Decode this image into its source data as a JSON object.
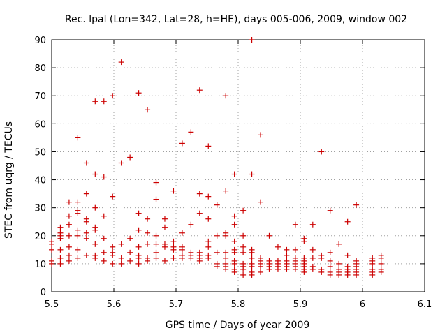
{
  "chart_data": {
    "type": "scatter",
    "title": "Rec. lpal (Lon=342, Lat=28, h=HE), days 005-006, 2009, window 002",
    "xlabel": "GPS time / Days of year 2009",
    "ylabel": "STEC from uqrg / TECUs",
    "xlim": [
      5.5,
      6.1
    ],
    "ylim": [
      0,
      90
    ],
    "xticks": [
      5.5,
      5.6,
      5.7,
      5.8,
      5.9,
      6.0,
      6.1
    ],
    "xtick_labels": [
      "5.5",
      "5.6",
      "5.7",
      "5.8",
      "5.9",
      "6",
      "6.1"
    ],
    "yticks": [
      0,
      10,
      20,
      30,
      40,
      50,
      60,
      70,
      80,
      90
    ],
    "ytick_labels": [
      "0",
      "10",
      "20",
      "30",
      "40",
      "50",
      "60",
      "70",
      "80",
      "90"
    ],
    "grid": true,
    "marker": "+",
    "color": "#cc0000",
    "series": [
      {
        "name": "STEC",
        "points": [
          [
            5.5,
            18
          ],
          [
            5.5,
            17
          ],
          [
            5.5,
            15
          ],
          [
            5.5,
            11
          ],
          [
            5.5,
            10
          ],
          [
            5.514,
            23
          ],
          [
            5.514,
            21
          ],
          [
            5.514,
            20
          ],
          [
            5.514,
            19
          ],
          [
            5.514,
            15
          ],
          [
            5.514,
            12
          ],
          [
            5.514,
            10
          ],
          [
            5.528,
            32
          ],
          [
            5.528,
            27
          ],
          [
            5.528,
            24
          ],
          [
            5.528,
            20
          ],
          [
            5.528,
            16
          ],
          [
            5.528,
            13
          ],
          [
            5.528,
            11
          ],
          [
            5.542,
            55
          ],
          [
            5.542,
            32
          ],
          [
            5.542,
            29
          ],
          [
            5.542,
            28
          ],
          [
            5.542,
            22
          ],
          [
            5.542,
            20
          ],
          [
            5.542,
            15
          ],
          [
            5.542,
            12
          ],
          [
            5.556,
            46
          ],
          [
            5.556,
            35
          ],
          [
            5.556,
            26
          ],
          [
            5.556,
            25
          ],
          [
            5.556,
            21
          ],
          [
            5.556,
            19
          ],
          [
            5.556,
            13
          ],
          [
            5.57,
            68
          ],
          [
            5.57,
            42
          ],
          [
            5.57,
            30
          ],
          [
            5.57,
            23
          ],
          [
            5.57,
            22
          ],
          [
            5.57,
            17
          ],
          [
            5.57,
            13
          ],
          [
            5.57,
            12
          ],
          [
            5.584,
            68
          ],
          [
            5.584,
            41
          ],
          [
            5.584,
            27
          ],
          [
            5.584,
            19
          ],
          [
            5.584,
            14
          ],
          [
            5.584,
            11
          ],
          [
            5.598,
            70
          ],
          [
            5.598,
            34
          ],
          [
            5.598,
            16
          ],
          [
            5.598,
            14
          ],
          [
            5.598,
            13
          ],
          [
            5.598,
            10
          ],
          [
            5.612,
            82
          ],
          [
            5.612,
            46
          ],
          [
            5.612,
            17
          ],
          [
            5.612,
            12
          ],
          [
            5.612,
            10
          ],
          [
            5.626,
            48
          ],
          [
            5.626,
            19
          ],
          [
            5.626,
            14
          ],
          [
            5.626,
            11
          ],
          [
            5.64,
            71
          ],
          [
            5.64,
            28
          ],
          [
            5.64,
            22
          ],
          [
            5.64,
            16
          ],
          [
            5.64,
            13
          ],
          [
            5.64,
            12
          ],
          [
            5.64,
            10
          ],
          [
            5.654,
            65
          ],
          [
            5.654,
            26
          ],
          [
            5.654,
            21
          ],
          [
            5.654,
            17
          ],
          [
            5.654,
            12
          ],
          [
            5.654,
            11
          ],
          [
            5.668,
            39
          ],
          [
            5.668,
            33
          ],
          [
            5.668,
            20
          ],
          [
            5.668,
            17
          ],
          [
            5.668,
            14
          ],
          [
            5.668,
            12
          ],
          [
            5.682,
            26
          ],
          [
            5.682,
            23
          ],
          [
            5.682,
            17
          ],
          [
            5.682,
            16
          ],
          [
            5.682,
            11
          ],
          [
            5.696,
            36
          ],
          [
            5.696,
            18
          ],
          [
            5.696,
            16
          ],
          [
            5.696,
            15
          ],
          [
            5.696,
            12
          ],
          [
            5.71,
            53
          ],
          [
            5.71,
            21
          ],
          [
            5.71,
            16
          ],
          [
            5.71,
            15
          ],
          [
            5.71,
            13
          ],
          [
            5.71,
            12
          ],
          [
            5.724,
            57
          ],
          [
            5.724,
            24
          ],
          [
            5.724,
            14
          ],
          [
            5.724,
            13
          ],
          [
            5.724,
            12
          ],
          [
            5.738,
            72
          ],
          [
            5.738,
            35
          ],
          [
            5.738,
            28
          ],
          [
            5.738,
            14
          ],
          [
            5.738,
            13
          ],
          [
            5.738,
            12
          ],
          [
            5.738,
            11
          ],
          [
            5.752,
            52
          ],
          [
            5.752,
            34
          ],
          [
            5.752,
            26
          ],
          [
            5.752,
            18
          ],
          [
            5.752,
            16
          ],
          [
            5.752,
            13
          ],
          [
            5.752,
            12
          ],
          [
            5.766,
            31
          ],
          [
            5.766,
            20
          ],
          [
            5.766,
            14
          ],
          [
            5.766,
            10
          ],
          [
            5.766,
            9
          ],
          [
            5.78,
            70
          ],
          [
            5.78,
            36
          ],
          [
            5.78,
            21
          ],
          [
            5.78,
            20
          ],
          [
            5.78,
            14
          ],
          [
            5.78,
            12
          ],
          [
            5.78,
            10
          ],
          [
            5.78,
            9
          ],
          [
            5.78,
            8
          ],
          [
            5.794,
            42
          ],
          [
            5.794,
            27
          ],
          [
            5.794,
            24
          ],
          [
            5.794,
            18
          ],
          [
            5.794,
            15
          ],
          [
            5.794,
            14
          ],
          [
            5.794,
            11
          ],
          [
            5.794,
            10
          ],
          [
            5.794,
            8
          ],
          [
            5.794,
            7
          ],
          [
            5.808,
            29
          ],
          [
            5.808,
            20
          ],
          [
            5.808,
            16
          ],
          [
            5.808,
            14
          ],
          [
            5.808,
            10
          ],
          [
            5.808,
            9
          ],
          [
            5.808,
            8
          ],
          [
            5.808,
            6
          ],
          [
            5.822,
            90
          ],
          [
            5.822,
            42
          ],
          [
            5.822,
            15
          ],
          [
            5.822,
            14
          ],
          [
            5.822,
            12
          ],
          [
            5.822,
            10
          ],
          [
            5.822,
            9
          ],
          [
            5.822,
            7
          ],
          [
            5.822,
            6
          ],
          [
            5.836,
            56
          ],
          [
            5.836,
            32
          ],
          [
            5.836,
            12
          ],
          [
            5.836,
            11
          ],
          [
            5.836,
            10
          ],
          [
            5.836,
            9
          ],
          [
            5.836,
            7
          ],
          [
            5.85,
            20
          ],
          [
            5.85,
            11
          ],
          [
            5.85,
            10
          ],
          [
            5.85,
            9
          ],
          [
            5.85,
            8
          ],
          [
            5.864,
            16
          ],
          [
            5.864,
            11
          ],
          [
            5.864,
            10
          ],
          [
            5.864,
            9
          ],
          [
            5.864,
            8
          ],
          [
            5.878,
            15
          ],
          [
            5.878,
            13
          ],
          [
            5.878,
            11
          ],
          [
            5.878,
            10
          ],
          [
            5.878,
            9
          ],
          [
            5.878,
            8
          ],
          [
            5.892,
            24
          ],
          [
            5.892,
            15
          ],
          [
            5.892,
            12
          ],
          [
            5.892,
            11
          ],
          [
            5.892,
            10
          ],
          [
            5.892,
            9
          ],
          [
            5.892,
            8
          ],
          [
            5.906,
            19
          ],
          [
            5.906,
            18
          ],
          [
            5.906,
            12
          ],
          [
            5.906,
            11
          ],
          [
            5.906,
            10
          ],
          [
            5.906,
            9
          ],
          [
            5.906,
            8
          ],
          [
            5.906,
            7
          ],
          [
            5.92,
            24
          ],
          [
            5.92,
            15
          ],
          [
            5.92,
            12
          ],
          [
            5.92,
            9
          ],
          [
            5.92,
            8
          ],
          [
            5.934,
            50
          ],
          [
            5.934,
            13
          ],
          [
            5.934,
            12
          ],
          [
            5.934,
            8
          ],
          [
            5.934,
            7
          ],
          [
            5.948,
            29
          ],
          [
            5.948,
            14
          ],
          [
            5.948,
            11
          ],
          [
            5.948,
            9
          ],
          [
            5.948,
            7
          ],
          [
            5.948,
            6
          ],
          [
            5.962,
            17
          ],
          [
            5.962,
            10
          ],
          [
            5.962,
            8
          ],
          [
            5.962,
            7
          ],
          [
            5.962,
            6
          ],
          [
            5.976,
            25
          ],
          [
            5.976,
            13
          ],
          [
            5.976,
            9
          ],
          [
            5.976,
            8
          ],
          [
            5.976,
            7
          ],
          [
            5.976,
            6
          ],
          [
            5.99,
            31
          ],
          [
            5.99,
            11
          ],
          [
            5.99,
            10
          ],
          [
            5.99,
            9
          ],
          [
            5.99,
            8
          ],
          [
            5.99,
            7
          ],
          [
            5.99,
            6
          ],
          [
            6.016,
            12
          ],
          [
            6.016,
            11
          ],
          [
            6.016,
            10
          ],
          [
            6.016,
            8
          ],
          [
            6.016,
            7
          ],
          [
            6.016,
            6
          ],
          [
            6.03,
            13
          ],
          [
            6.03,
            12
          ],
          [
            6.03,
            10
          ],
          [
            6.03,
            8
          ],
          [
            6.03,
            7
          ]
        ]
      }
    ]
  }
}
